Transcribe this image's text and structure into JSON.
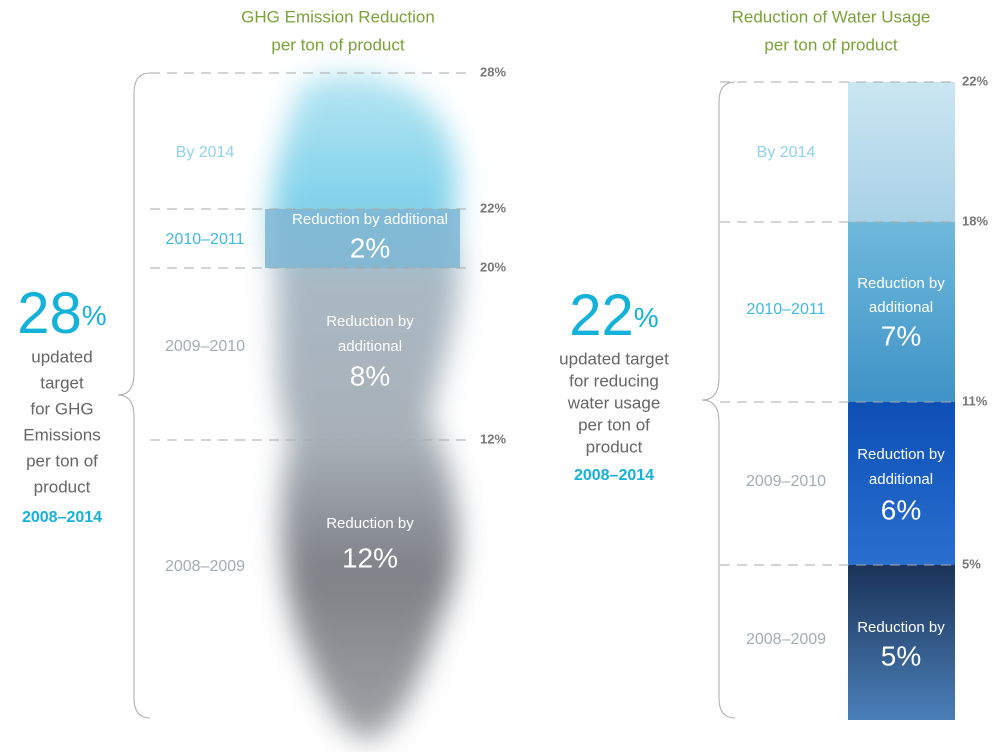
{
  "ghg": {
    "title": [
      "GHG Emission Reduction",
      "per ton of product"
    ],
    "target": {
      "number": "28",
      "unit": "%",
      "lines": [
        "updated",
        "target",
        "for GHG",
        "Emissions",
        "per ton of",
        "product"
      ],
      "period": "2008–2014"
    },
    "levels": [
      "28%",
      "22%",
      "20%",
      "12%"
    ],
    "periods": [
      "By 2014",
      "2010–2011",
      "2009–2010",
      "2008–2009"
    ],
    "segments": [
      {
        "lines": [
          "Reduction by additional"
        ],
        "value": "2%"
      },
      {
        "lines": [
          "Reduction by",
          "additional"
        ],
        "value": "8%"
      },
      {
        "lines": [
          "Reduction by"
        ],
        "value": "12%"
      }
    ]
  },
  "water": {
    "title": [
      "Reduction of Water Usage",
      "per ton of product"
    ],
    "target": {
      "number": "22",
      "unit": "%",
      "lines": [
        "updated target",
        "for reducing",
        "water usage",
        "per ton of",
        "product"
      ],
      "period": "2008–2014"
    },
    "levels": [
      "22%",
      "18%",
      "11%",
      "5%"
    ],
    "periods": [
      "By 2014",
      "2010–2011",
      "2009–2010",
      "2008–2009"
    ],
    "segments": [
      {
        "lines": [
          "Reduction by",
          "additional"
        ],
        "value": "7%"
      },
      {
        "lines": [
          "Reduction by",
          "additional"
        ],
        "value": "6%"
      },
      {
        "lines": [
          "Reduction by"
        ],
        "value": "5%"
      }
    ]
  }
}
